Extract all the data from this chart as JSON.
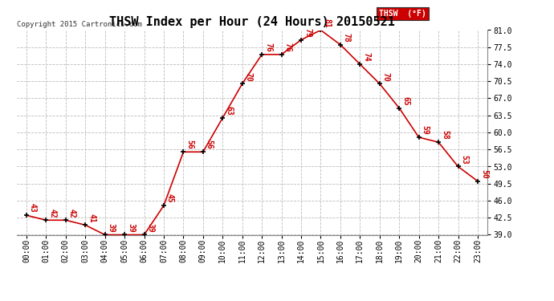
{
  "title": "THSW Index per Hour (24 Hours) 20150521",
  "copyright": "Copyright 2015 Cartronics.com",
  "legend_label": "THSW  (°F)",
  "hours": [
    "00:00",
    "01:00",
    "02:00",
    "03:00",
    "04:00",
    "05:00",
    "06:00",
    "07:00",
    "08:00",
    "09:00",
    "10:00",
    "11:00",
    "12:00",
    "13:00",
    "14:00",
    "15:00",
    "16:00",
    "17:00",
    "18:00",
    "19:00",
    "20:00",
    "21:00",
    "22:00",
    "23:00"
  ],
  "values": [
    43,
    42,
    42,
    41,
    39,
    39,
    39,
    45,
    56,
    56,
    63,
    70,
    76,
    76,
    79,
    81,
    78,
    74,
    70,
    65,
    59,
    58,
    53,
    50
  ],
  "ylim_min": 39.0,
  "ylim_max": 81.0,
  "yticks": [
    39.0,
    42.5,
    46.0,
    49.5,
    53.0,
    56.5,
    60.0,
    63.5,
    67.0,
    70.5,
    74.0,
    77.5,
    81.0
  ],
  "line_color": "#cc0000",
  "marker_color": "#000000",
  "label_color": "#cc0000",
  "background_color": "#ffffff",
  "grid_color": "#bbbbbb",
  "title_fontsize": 11,
  "label_fontsize": 7,
  "tick_fontsize": 7,
  "legend_bg": "#cc0000",
  "legend_text_color": "#ffffff"
}
